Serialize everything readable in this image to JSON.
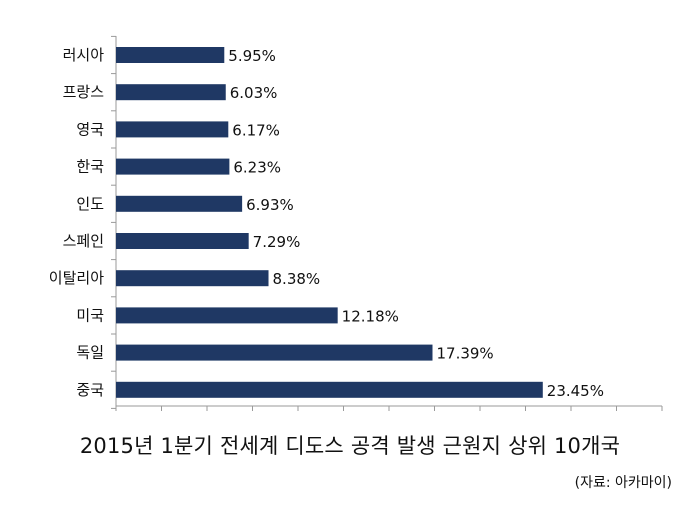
{
  "chart_data": {
    "type": "bar",
    "orientation": "horizontal",
    "title": "2015년 1분기 전세계 디도스 공격 발생 근원지 상위 10개국",
    "source": "(자료: 아카마이)",
    "categories": [
      "러시아",
      "프랑스",
      "영국",
      "한국",
      "인도",
      "스페인",
      "이탈리아",
      "미국",
      "독일",
      "중국"
    ],
    "values": [
      5.95,
      6.03,
      6.17,
      6.23,
      6.93,
      7.29,
      8.38,
      12.18,
      17.39,
      23.45
    ],
    "value_labels": [
      "5.95%",
      "6.03%",
      "6.17%",
      "6.23%",
      "6.93%",
      "7.29%",
      "8.38%",
      "12.18%",
      "17.39%",
      "23.45%"
    ],
    "xlim": [
      0,
      30
    ],
    "grid": false,
    "bar_color": "#1f3864"
  }
}
